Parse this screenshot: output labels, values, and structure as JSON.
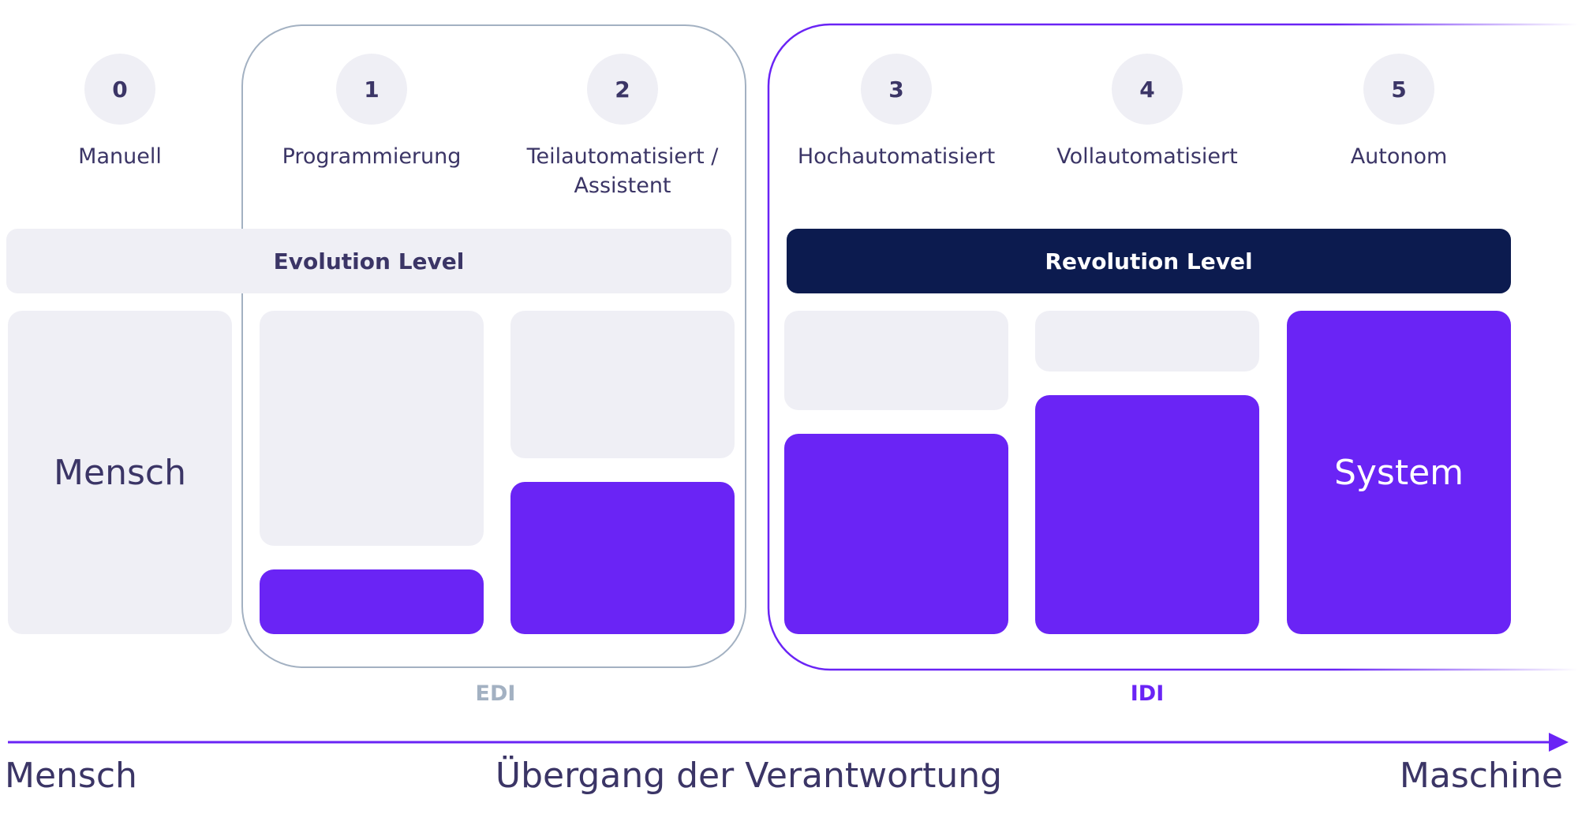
{
  "colors": {
    "accent": "#6a24f5",
    "navy": "#0c1b4f",
    "gray_fill": "#efeff5",
    "edi_border": "#a3b1c2",
    "text": "#3b3566"
  },
  "levels": [
    {
      "number": "0",
      "label": "Manuell",
      "system_share": 0,
      "text": "Mensch"
    },
    {
      "number": "1",
      "label": "Programmierung",
      "system_share": 0.2
    },
    {
      "number": "2",
      "label": "Teilautomatisiert / Assistent",
      "system_share": 0.47
    },
    {
      "number": "3",
      "label": "Hochautomatisiert",
      "system_share": 0.62
    },
    {
      "number": "4",
      "label": "Vollautomatisiert",
      "system_share": 0.74
    },
    {
      "number": "5",
      "label": "Autonom",
      "system_share": 1,
      "text": "System"
    }
  ],
  "evolution_label": "Evolution Level",
  "revolution_label": "Revolution Level",
  "groups": {
    "edi": "EDI",
    "idi": "IDI"
  },
  "axis": {
    "left": "Mensch",
    "center": "Übergang der Verantwortung",
    "right": "Maschine"
  }
}
